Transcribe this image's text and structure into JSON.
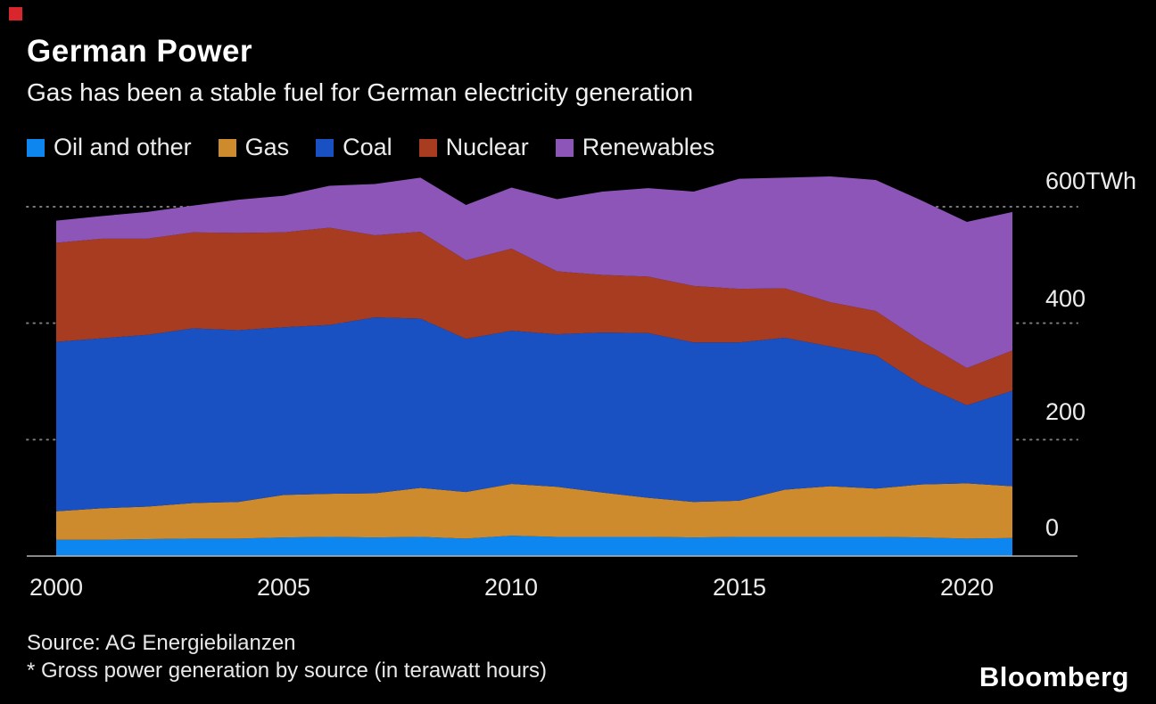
{
  "page": {
    "title": "German Power",
    "subtitle": "Gas has been a stable fuel for German electricity generation",
    "source_line": "Source: AG Energiebilanzen",
    "footnote_line": "* Gross power generation by source (in terawatt hours)",
    "brand": "Bloomberg",
    "background_color": "#000000",
    "accent_color": "#d8262c"
  },
  "chart_data": {
    "type": "area",
    "stacked": true,
    "title": "German Power",
    "subtitle": "Gas has been a stable fuel for German electricity generation",
    "unit": "TWh",
    "grid": "dotted-horizontal",
    "legend_position": "top",
    "ylim": [
      0,
      600
    ],
    "x": [
      2000,
      2001,
      2002,
      2003,
      2004,
      2005,
      2006,
      2007,
      2008,
      2009,
      2010,
      2011,
      2012,
      2013,
      2014,
      2015,
      2016,
      2017,
      2018,
      2019,
      2020,
      2021
    ],
    "series": [
      {
        "name": "Oil and other",
        "color": "#0e86f0",
        "values": [
          28,
          28,
          29,
          30,
          30,
          32,
          33,
          32,
          33,
          30,
          35,
          33,
          33,
          33,
          32,
          33,
          33,
          33,
          33,
          32,
          30,
          31
        ]
      },
      {
        "name": "Gas",
        "color": "#cd8b2d",
        "values": [
          49,
          54,
          56,
          61,
          63,
          73,
          74,
          76,
          84,
          80,
          89,
          86,
          76,
          67,
          61,
          62,
          81,
          87,
          83,
          91,
          95,
          89
        ]
      },
      {
        "name": "Coal",
        "color": "#1a51c2",
        "values": [
          291,
          292,
          295,
          300,
          295,
          288,
          290,
          302,
          291,
          263,
          263,
          262,
          275,
          283,
          274,
          272,
          261,
          240,
          229,
          171,
          134,
          164
        ]
      },
      {
        "name": "Nuclear",
        "color": "#a83c20",
        "values": [
          170,
          171,
          165,
          165,
          167,
          163,
          167,
          141,
          149,
          135,
          141,
          108,
          99,
          97,
          97,
          92,
          85,
          76,
          76,
          75,
          64,
          69
        ]
      },
      {
        "name": "Renewables",
        "color": "#8e55b8",
        "values": [
          38,
          39,
          46,
          46,
          57,
          63,
          72,
          88,
          93,
          95,
          105,
          124,
          143,
          152,
          162,
          189,
          190,
          216,
          225,
          242,
          251,
          238
        ]
      }
    ],
    "yticks": [
      {
        "value": 0,
        "label": "0"
      },
      {
        "value": 200,
        "label": "200"
      },
      {
        "value": 400,
        "label": "400"
      },
      {
        "value": 600,
        "label": "600TWh"
      }
    ],
    "xticks": [
      {
        "value": 2000,
        "label": "2000"
      },
      {
        "value": 2005,
        "label": "2005"
      },
      {
        "value": 2010,
        "label": "2010"
      },
      {
        "value": 2015,
        "label": "2015"
      },
      {
        "value": 2020,
        "label": "2020"
      }
    ]
  }
}
